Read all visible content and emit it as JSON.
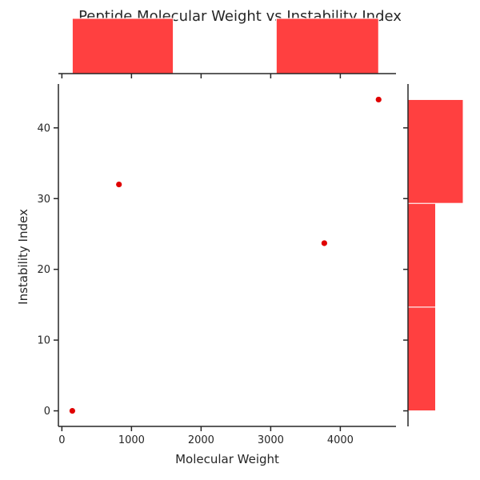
{
  "chart_data": {
    "type": "scatter",
    "title": "Peptide Molecular Weight vs Instability Index",
    "xlabel": "Molecular Weight",
    "ylabel": "Instability Index",
    "xlim": [
      -50,
      4800
    ],
    "ylim": [
      -2.2,
      46.2
    ],
    "x_ticks": [
      0,
      1000,
      2000,
      3000,
      4000
    ],
    "y_ticks": [
      0,
      10,
      20,
      30,
      40
    ],
    "points": [
      {
        "x": 150,
        "y": 0
      },
      {
        "x": 820,
        "y": 32
      },
      {
        "x": 3770,
        "y": 23.7
      },
      {
        "x": 4550,
        "y": 44
      }
    ],
    "marginal_x_histogram": {
      "bins": [
        {
          "start": 150,
          "end": 1600,
          "count": 2
        },
        {
          "start": 1600,
          "end": 3080,
          "count": 0
        },
        {
          "start": 3080,
          "end": 4550,
          "count": 2
        }
      ],
      "count_max": 2
    },
    "marginal_y_histogram": {
      "bins": [
        {
          "start": 0,
          "end": 14.67,
          "count": 1
        },
        {
          "start": 14.67,
          "end": 29.33,
          "count": 1
        },
        {
          "start": 29.33,
          "end": 44,
          "count": 2
        }
      ],
      "count_max": 2
    },
    "grid": false,
    "colors": {
      "points": "#e00000",
      "histogram_fill": "#ff4040",
      "histogram_edge": "#ffffff",
      "axes": "#262626"
    }
  }
}
